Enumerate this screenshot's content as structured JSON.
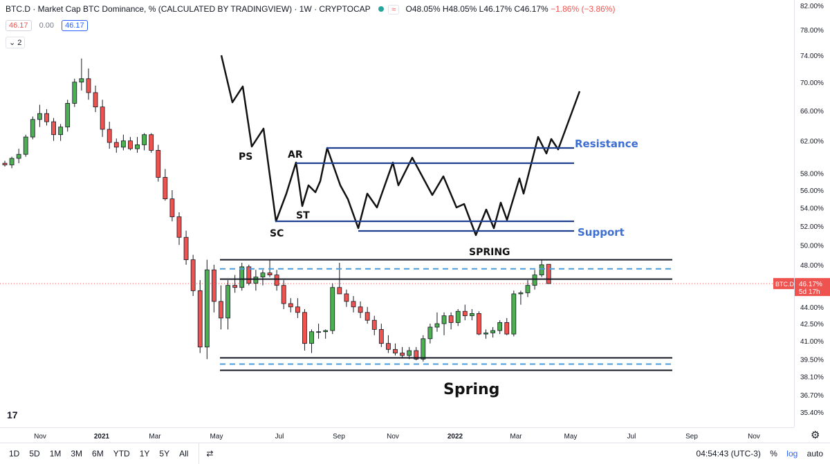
{
  "header": {
    "symbol_title": "BTC.D · Market Cap BTC Dominance, % (CALCULATED BY TRADINGVIEW) · 1W · CRYPTOCAP",
    "approx_glyph": "≈",
    "ohlc": {
      "o": "O48.05%",
      "h": "H48.05%",
      "l": "L46.17%",
      "c": "C46.17%",
      "chg": "−1.86% (−3.86%)"
    }
  },
  "chips": {
    "sell": "46.17",
    "spread": "0.00",
    "buy": "46.17"
  },
  "collapse_label": "2",
  "colors": {
    "up": "#26a69a",
    "up_fill": "#4caf50",
    "down": "#ef5350",
    "line_dark": "#131722",
    "line_blue": "#1f3f8f",
    "dash_blue": "#4a9bd9",
    "label_blue": "#3d6ed1"
  },
  "chart_data": [
    {
      "type": "candlestick",
      "title": "BTC.D · Market Cap BTC Dominance, % (CALCULATED BY TRADINGVIEW) · 1W · CRYPTOCAP",
      "scale": "log",
      "ylim": [
        34.9,
        82.0
      ],
      "y_ticks": [
        "82.00%",
        "78.00%",
        "74.00%",
        "70.00%",
        "66.00%",
        "62.00%",
        "58.00%",
        "56.00%",
        "54.00%",
        "52.00%",
        "50.00%",
        "48.00%",
        "46.00%",
        "44.00%",
        "42.50%",
        "41.00%",
        "39.50%",
        "38.10%",
        "36.70%",
        "35.40%"
      ],
      "x_ticks": [
        "Nov",
        "2021",
        "Mar",
        "May",
        "Jul",
        "Sep",
        "Nov",
        "2022",
        "Mar",
        "May",
        "Jul",
        "Sep",
        "Nov"
      ],
      "last_price_label": "BTC.D",
      "last_price": "46.17%",
      "countdown": "5d 17h",
      "candles": [
        [
          59.2,
          59.5,
          58.8,
          59.0
        ],
        [
          59.0,
          60.0,
          58.6,
          59.8
        ],
        [
          59.8,
          61.0,
          59.2,
          60.3
        ],
        [
          60.3,
          62.8,
          60.0,
          62.5
        ],
        [
          62.5,
          65.2,
          62.2,
          64.8
        ],
        [
          64.8,
          66.8,
          63.8,
          65.6
        ],
        [
          65.6,
          66.2,
          64.0,
          64.5
        ],
        [
          64.5,
          65.0,
          62.0,
          62.8
        ],
        [
          62.8,
          64.2,
          62.0,
          63.8
        ],
        [
          63.8,
          67.5,
          63.2,
          67.0
        ],
        [
          67.0,
          70.5,
          66.5,
          70.0
        ],
        [
          70.0,
          73.5,
          68.8,
          70.5
        ],
        [
          70.5,
          72.0,
          67.5,
          68.5
        ],
        [
          68.5,
          69.5,
          65.8,
          66.5
        ],
        [
          66.5,
          67.5,
          62.5,
          63.5
        ],
        [
          63.5,
          64.5,
          61.0,
          61.8
        ],
        [
          61.8,
          62.3,
          60.5,
          61.2
        ],
        [
          61.2,
          62.8,
          60.8,
          62.0
        ],
        [
          62.0,
          62.5,
          60.8,
          61.0
        ],
        [
          61.0,
          62.5,
          60.5,
          61.5
        ],
        [
          61.5,
          63.0,
          60.8,
          62.8
        ],
        [
          62.8,
          63.0,
          60.5,
          60.8
        ],
        [
          60.8,
          61.5,
          57.0,
          57.5
        ],
        [
          57.5,
          58.5,
          54.8,
          55.0
        ],
        [
          55.0,
          56.0,
          52.5,
          53.0
        ],
        [
          53.0,
          53.5,
          50.0,
          50.8
        ],
        [
          50.8,
          51.5,
          48.0,
          48.5
        ],
        [
          48.5,
          49.0,
          45.0,
          45.5
        ],
        [
          45.5,
          46.5,
          40.0,
          40.5
        ],
        [
          40.5,
          48.5,
          39.5,
          47.5
        ],
        [
          47.5,
          48.0,
          43.5,
          44.5
        ],
        [
          44.5,
          46.0,
          42.0,
          43.0
        ],
        [
          43.0,
          46.5,
          42.0,
          46.0
        ],
        [
          46.0,
          47.0,
          45.3,
          45.8
        ],
        [
          45.8,
          48.2,
          45.5,
          47.8
        ],
        [
          47.8,
          48.0,
          46.0,
          46.2
        ],
        [
          46.2,
          47.5,
          45.5,
          46.8
        ],
        [
          46.8,
          47.5,
          46.0,
          47.2
        ],
        [
          47.2,
          48.5,
          46.8,
          47.0
        ],
        [
          47.0,
          47.5,
          45.5,
          46.0
        ],
        [
          46.0,
          46.5,
          43.8,
          44.3
        ],
        [
          44.3,
          44.8,
          43.5,
          44.0
        ],
        [
          44.0,
          44.8,
          43.0,
          43.5
        ],
        [
          43.5,
          43.8,
          40.2,
          40.8
        ],
        [
          40.8,
          42.0,
          40.0,
          41.8
        ],
        [
          41.8,
          42.5,
          41.2,
          41.8
        ],
        [
          41.8,
          42.0,
          41.2,
          41.9
        ],
        [
          41.9,
          46.2,
          41.6,
          45.8
        ],
        [
          45.8,
          48.2,
          45.3,
          45.2
        ],
        [
          45.2,
          45.6,
          44.0,
          44.5
        ],
        [
          44.5,
          45.0,
          43.5,
          44.0
        ],
        [
          44.0,
          44.5,
          43.0,
          43.5
        ],
        [
          43.5,
          44.0,
          42.5,
          42.8
        ],
        [
          42.8,
          43.2,
          41.5,
          42.0
        ],
        [
          42.0,
          42.5,
          40.5,
          40.8
        ],
        [
          40.8,
          41.5,
          40.0,
          40.3
        ],
        [
          40.3,
          40.8,
          39.8,
          40.0
        ],
        [
          40.0,
          40.5,
          39.6,
          39.8
        ],
        [
          39.8,
          40.5,
          39.5,
          40.2
        ],
        [
          40.2,
          40.5,
          39.4,
          39.5
        ],
        [
          39.5,
          41.5,
          39.3,
          41.2
        ],
        [
          41.2,
          42.5,
          40.8,
          42.2
        ],
        [
          42.2,
          43.5,
          41.8,
          42.5
        ],
        [
          42.5,
          43.5,
          41.5,
          43.2
        ],
        [
          43.2,
          43.5,
          42.0,
          42.6
        ],
        [
          42.6,
          43.8,
          42.3,
          43.6
        ],
        [
          43.6,
          44.2,
          42.8,
          43.2
        ],
        [
          43.2,
          43.8,
          42.8,
          43.4
        ],
        [
          43.4,
          43.6,
          41.5,
          41.6
        ],
        [
          41.6,
          42.0,
          41.2,
          41.7
        ],
        [
          41.7,
          42.2,
          41.3,
          41.9
        ],
        [
          41.9,
          42.8,
          41.6,
          42.6
        ],
        [
          42.6,
          43.0,
          41.5,
          41.6
        ],
        [
          41.6,
          45.5,
          41.4,
          45.2
        ],
        [
          45.2,
          45.5,
          44.2,
          45.3
        ],
        [
          45.3,
          46.5,
          44.9,
          46.0
        ],
        [
          46.0,
          47.5,
          45.6,
          47.0
        ],
        [
          47.0,
          48.5,
          46.8,
          48.0
        ],
        [
          48.05,
          48.05,
          46.17,
          46.17
        ]
      ]
    },
    {
      "type": "line",
      "annotation": "Wyckoff accumulation schematic",
      "labels": [
        "PS",
        "SC",
        "AR",
        "ST",
        "SPRING",
        "Resistance",
        "Support",
        "Spring"
      ]
    }
  ],
  "bottom_bar": {
    "timeframes": [
      "1D",
      "5D",
      "1M",
      "3M",
      "6M",
      "YTD",
      "1Y",
      "5Y",
      "All"
    ],
    "compare_glyph": "⇄",
    "time": "04:54:43 (UTC-3)",
    "pct": "%",
    "log": "log",
    "auto": "auto"
  },
  "logo_text": "17",
  "gear_glyph": "⚙"
}
